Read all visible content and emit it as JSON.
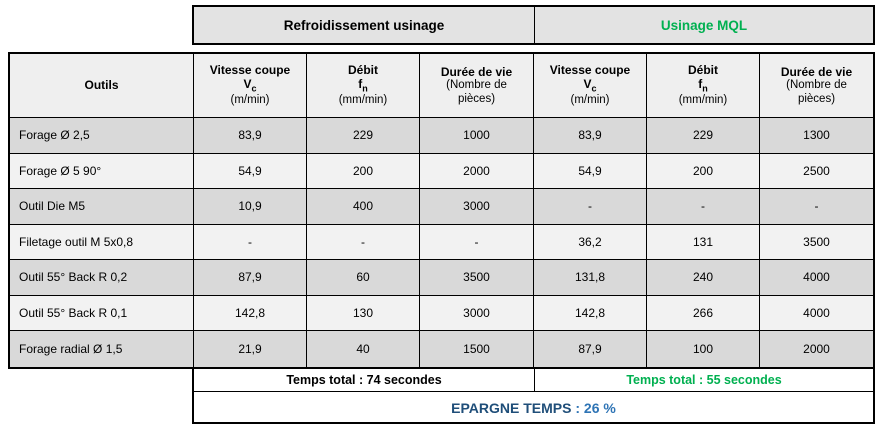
{
  "colors": {
    "green": "#00B050",
    "blue_label": "#1F4E79",
    "blue_value": "#2E74B5",
    "row_odd": "#D9D9D9",
    "row_even": "#F2F2F2",
    "header_bg": "#EFEFEF",
    "band_bg": "#E3E3E3"
  },
  "band": {
    "left": "Refroidissement usinage",
    "right": "Usinage MQL"
  },
  "header": {
    "outils": "Outils",
    "cols": [
      {
        "title": "Vitesse coupe",
        "sym": "V",
        "sub": "c",
        "unit": "(m/min)"
      },
      {
        "title": "Débit",
        "sym": "f",
        "sub": "n",
        "unit": "(mm/min)"
      },
      {
        "title": "Durée de vie",
        "unit": "(Nombre de pièces)"
      },
      {
        "title": "Vitesse coupe",
        "sym": "V",
        "sub": "c",
        "unit": "(m/min)"
      },
      {
        "title": "Débit",
        "sym": "f",
        "sub": "n",
        "unit": "(mm/min)"
      },
      {
        "title": "Durée de vie",
        "unit": "(Nombre de pièces)"
      }
    ]
  },
  "rows": [
    {
      "outil": "Forage Ø 2,5",
      "cells": [
        "83,9",
        "229",
        "1000",
        "83,9",
        "229",
        "1300"
      ]
    },
    {
      "outil": "Forage Ø 5 90°",
      "cells": [
        "54,9",
        "200",
        "2000",
        "54,9",
        "200",
        "2500"
      ]
    },
    {
      "outil": "Outil Die M5",
      "cells": [
        "10,9",
        "400",
        "3000",
        "-",
        "-",
        "-"
      ]
    },
    {
      "outil": "Filetage outil M 5x0,8",
      "cells": [
        "-",
        "-",
        "-",
        "36,2",
        "131",
        "3500"
      ]
    },
    {
      "outil": "Outil 55° Back R 0,2",
      "cells": [
        "87,9",
        "60",
        "3500",
        "131,8",
        "240",
        "4000"
      ]
    },
    {
      "outil": "Outil 55° Back R 0,1",
      "cells": [
        "142,8",
        "130",
        "3000",
        "142,8",
        "266",
        "4000"
      ]
    },
    {
      "outil": "Forage radial Ø 1,5",
      "cells": [
        "21,9",
        "40",
        "1500",
        "87,9",
        "100",
        "2000"
      ]
    }
  ],
  "totals": {
    "left": "Temps total : 74 secondes",
    "right": "Temps total : 55 secondes"
  },
  "savings": {
    "label": "EPARGNE TEMPS",
    "sep": " : ",
    "value": "26 %"
  }
}
